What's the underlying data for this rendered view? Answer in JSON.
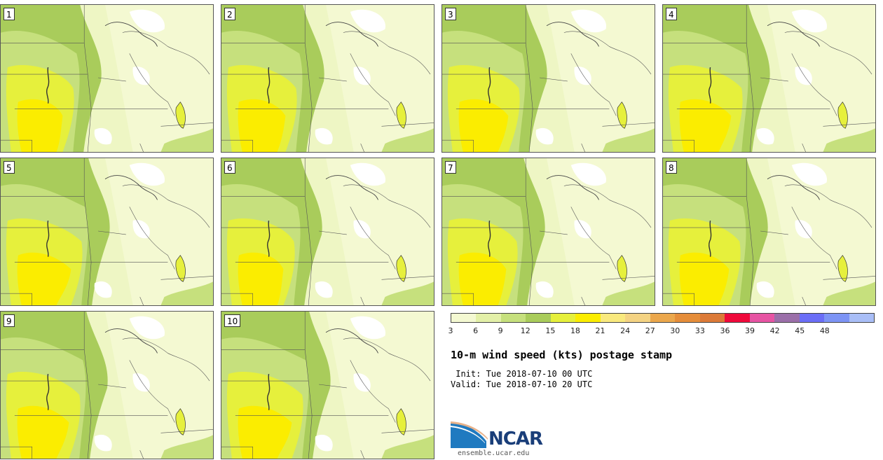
{
  "panels": [
    {
      "label": "1"
    },
    {
      "label": "2"
    },
    {
      "label": "3"
    },
    {
      "label": "4"
    },
    {
      "label": "5"
    },
    {
      "label": "6"
    },
    {
      "label": "7"
    },
    {
      "label": "8"
    },
    {
      "label": "9"
    },
    {
      "label": "10"
    }
  ],
  "colorbar": {
    "ticks": [
      "3",
      "6",
      "9",
      "12",
      "15",
      "18",
      "21",
      "24",
      "27",
      "30",
      "33",
      "36",
      "39",
      "42",
      "45",
      "48"
    ],
    "colors": [
      "#f4f9d2",
      "#e3f0a8",
      "#c6e07d",
      "#a9cc5b",
      "#e6f03c",
      "#fbed00",
      "#f9e97e",
      "#f4d383",
      "#eba74c",
      "#e58d3a",
      "#dc7a38",
      "#ef0a3b",
      "#e754a3",
      "#9b6fa9",
      "#6b6ef7",
      "#7d94f5",
      "#a9bef7"
    ]
  },
  "title": "10-m wind speed (kts) postage stamp",
  "init": " Init: Tue 2018-07-10 00 UTC",
  "valid": "Valid: Tue 2018-07-10 20 UTC",
  "logo": {
    "text": "NCAR",
    "url": "ensemble.ucar.edu"
  }
}
